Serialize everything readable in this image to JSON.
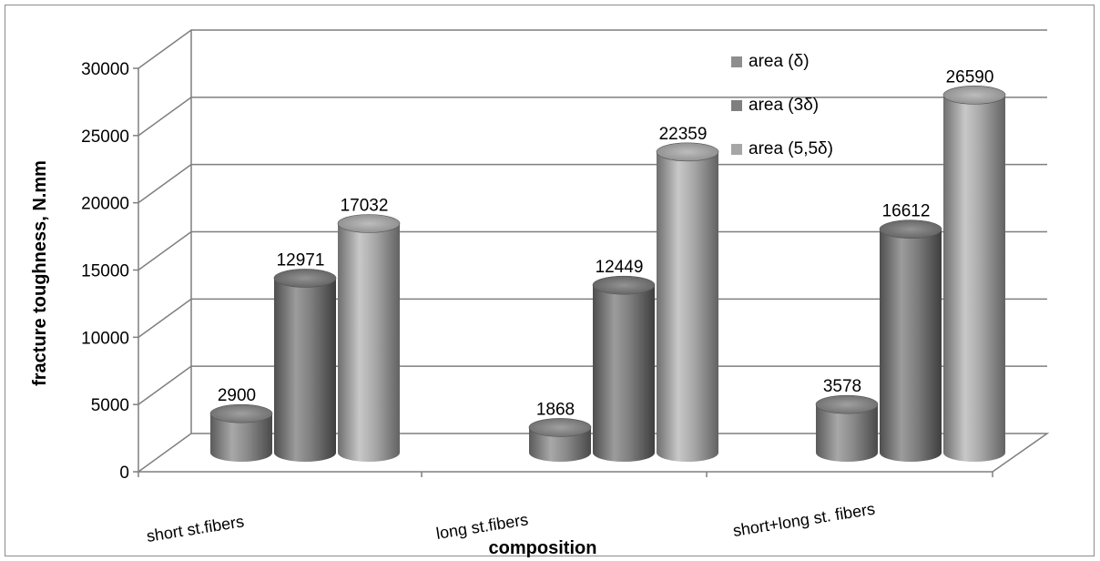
{
  "chart_data": {
    "type": "bar",
    "style": "3d-cylinder",
    "categories": [
      "short st.fibers",
      "long st.fibers",
      "short+long st. fibers"
    ],
    "series": [
      {
        "name": "area (δ)",
        "values": [
          2900,
          1868,
          3578
        ],
        "color": "#8e8e8e"
      },
      {
        "name": "area (3δ)",
        "values": [
          12971,
          12449,
          16612
        ],
        "color": "#7f7f7f"
      },
      {
        "name": "area (5,5δ)",
        "values": [
          17032,
          22359,
          26590
        ],
        "color": "#a6a6a6"
      }
    ],
    "title": "",
    "xlabel": "composition",
    "ylabel": "fracture toughness, N.mm",
    "ylim": [
      0,
      30000
    ],
    "yticks": [
      0,
      5000,
      10000,
      15000,
      20000,
      25000,
      30000
    ],
    "grid": true,
    "legend_position": "top-right",
    "data_labels": true
  }
}
